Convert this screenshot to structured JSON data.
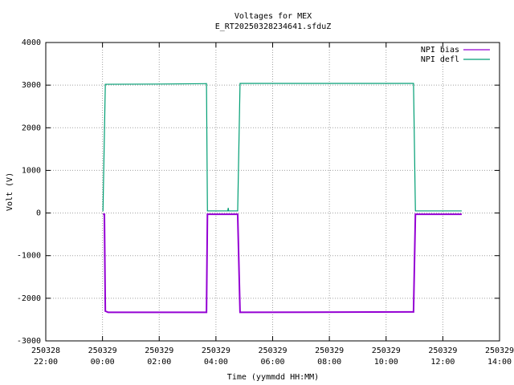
{
  "chart_data": {
    "type": "line",
    "title": "Voltages for MEX",
    "subtitle": "E_RT20250328234641.sfduZ",
    "x_label": "Time (yymmdd HH:MM)",
    "y_label": "Volt (V)",
    "xlim": [
      "2025-03-28T22:00",
      "2025-03-29T14:00"
    ],
    "xticks": [
      {
        "value": "2025-03-28T22:00",
        "label": "250328\n22:00"
      },
      {
        "value": "2025-03-29T00:00",
        "label": "250329\n00:00"
      },
      {
        "value": "2025-03-29T02:00",
        "label": "250329\n02:00"
      },
      {
        "value": "2025-03-29T04:00",
        "label": "250329\n04:00"
      },
      {
        "value": "2025-03-29T06:00",
        "label": "250329\n06:00"
      },
      {
        "value": "2025-03-29T08:00",
        "label": "250329\n08:00"
      },
      {
        "value": "2025-03-29T10:00",
        "label": "250329\n10:00"
      },
      {
        "value": "2025-03-29T12:00",
        "label": "250329\n12:00"
      },
      {
        "value": "2025-03-29T14:00",
        "label": "250329\n14:00"
      }
    ],
    "ylim": [
      -3000,
      4000
    ],
    "yticks": [
      -3000,
      -2000,
      -1000,
      0,
      1000,
      2000,
      3000,
      4000
    ],
    "grid": true,
    "legend": "top-right",
    "series": [
      {
        "name": "NPI bias",
        "color": "#9400d3",
        "x": [
          "2025-03-29T00:01",
          "2025-03-29T00:04",
          "2025-03-29T00:06",
          "2025-03-29T00:12",
          "2025-03-29T03:40",
          "2025-03-29T03:42",
          "2025-03-29T04:46",
          "2025-03-29T04:51",
          "2025-03-29T10:58",
          "2025-03-29T11:02",
          "2025-03-29T12:40"
        ],
        "values": [
          -30,
          -30,
          -2300,
          -2330,
          -2330,
          -30,
          -30,
          -2330,
          -2320,
          -30,
          -30
        ]
      },
      {
        "name": "NPI defl",
        "color": "#009e73",
        "x": [
          "2025-03-29T00:01",
          "2025-03-29T00:06",
          "2025-03-29T02:00",
          "2025-03-29T03:40",
          "2025-03-29T03:42",
          "2025-03-29T04:25",
          "2025-03-29T04:26",
          "2025-03-29T04:27",
          "2025-03-29T04:46",
          "2025-03-29T04:51",
          "2025-03-29T08:00",
          "2025-03-29T10:58",
          "2025-03-29T11:02",
          "2025-03-29T12:40"
        ],
        "values": [
          40,
          3020,
          3025,
          3035,
          50,
          50,
          120,
          50,
          50,
          3040,
          3040,
          3040,
          50,
          50
        ]
      }
    ]
  }
}
